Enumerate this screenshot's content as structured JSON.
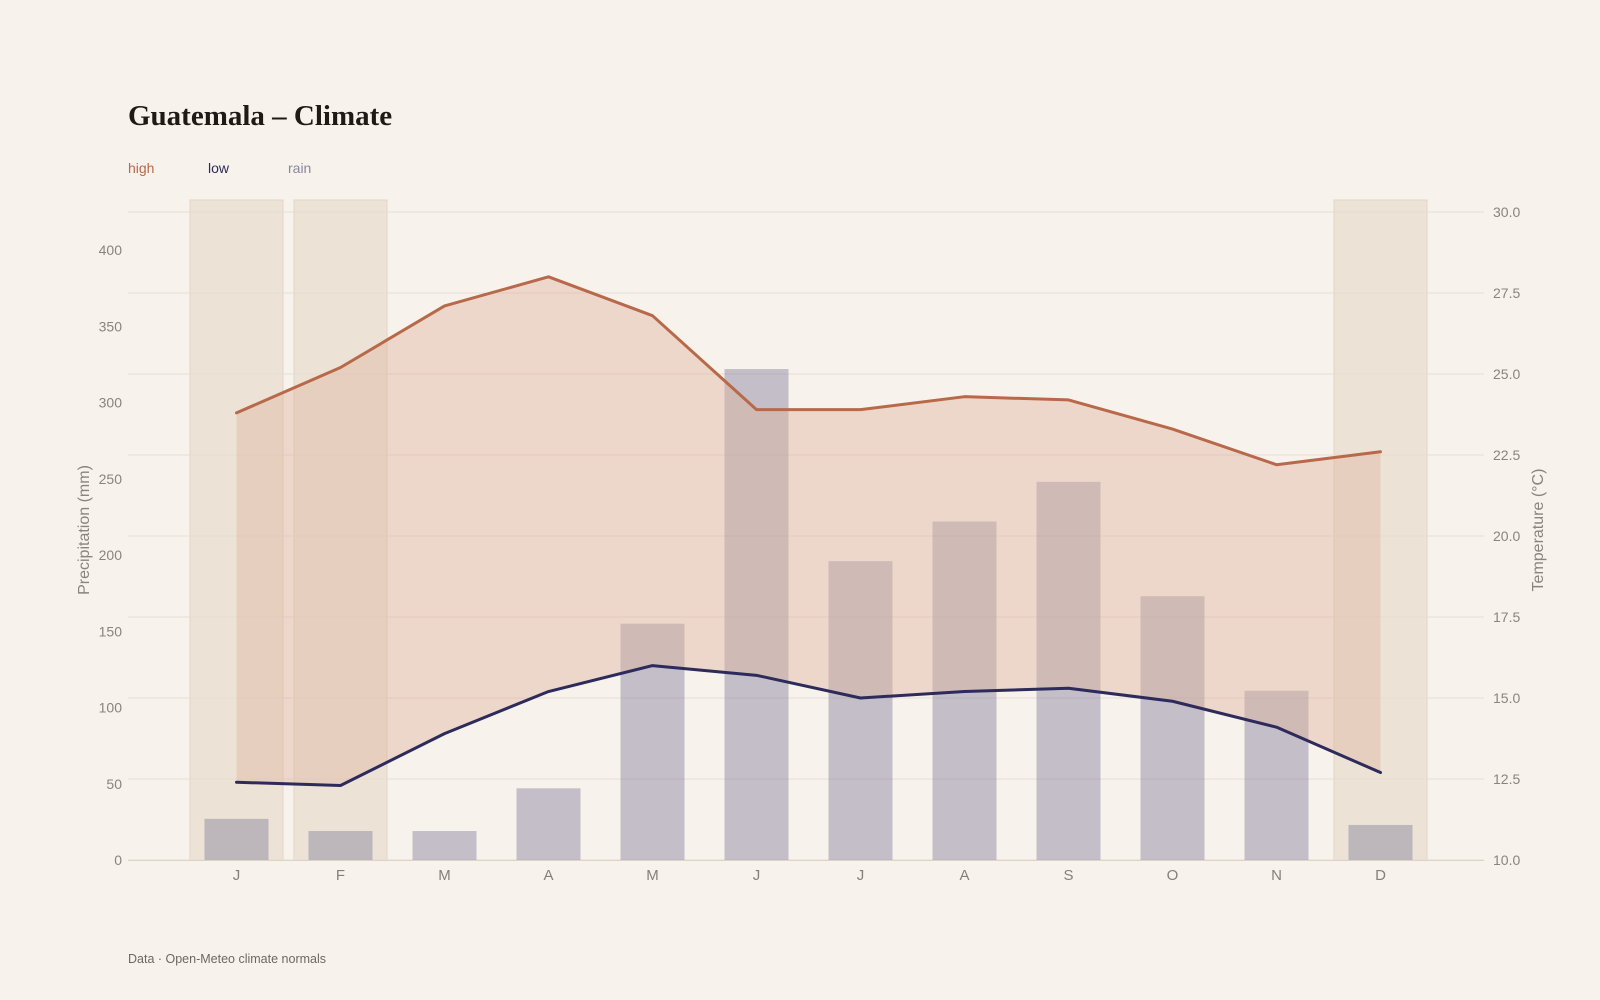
{
  "chart_data": {
    "type": "bar+line",
    "title": "Guatemala – Climate",
    "categories": [
      "J",
      "F",
      "M",
      "A",
      "M",
      "J",
      "J",
      "A",
      "S",
      "O",
      "N",
      "D"
    ],
    "highlighted_categories": [
      0,
      1,
      11
    ],
    "series": [
      {
        "name": "high",
        "type": "line",
        "axis": "right",
        "values": [
          23.8,
          25.2,
          27.1,
          28.0,
          26.8,
          23.9,
          23.9,
          24.3,
          24.2,
          23.3,
          22.2,
          22.6
        ]
      },
      {
        "name": "low",
        "type": "line",
        "axis": "right",
        "values": [
          12.4,
          12.3,
          13.9,
          15.2,
          16.0,
          15.7,
          15.0,
          15.2,
          15.3,
          14.9,
          14.1,
          12.7
        ]
      },
      {
        "name": "rain",
        "type": "bar",
        "axis": "left",
        "values": [
          27,
          19,
          19,
          47,
          155,
          322,
          196,
          222,
          248,
          173,
          111,
          23
        ]
      }
    ],
    "y_left": {
      "label": "Precipitation (mm)",
      "ylim": [
        0,
        425
      ],
      "ticks": [
        0,
        50,
        100,
        150,
        200,
        250,
        300,
        350,
        400
      ]
    },
    "y_right": {
      "label": "Temperature (°C)",
      "ylim": [
        10,
        30
      ],
      "ticks": [
        "10.0",
        "12.5",
        "15.0",
        "17.5",
        "20.0",
        "22.5",
        "25.0",
        "27.5",
        "30.0"
      ]
    },
    "grid": true,
    "legend_placement": "top-left",
    "colors": {
      "high": "#b8694a",
      "low": "#2d2a5c",
      "rain": "#7c7694",
      "band_fill": "#e0b6a2",
      "highlight": "#ece3d6"
    }
  },
  "footnote": "Data · Open-Meteo climate normals"
}
